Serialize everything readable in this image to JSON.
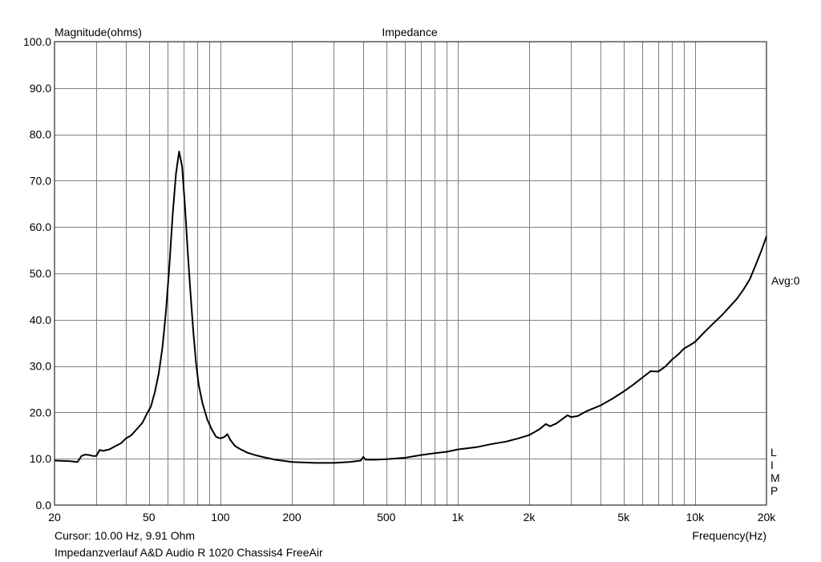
{
  "chart_data": {
    "type": "line",
    "title": "Impedance",
    "ylabel": "Magnitude(ohms)",
    "xlabel": "Frequency(Hz)",
    "x_scale": "log",
    "xlim": [
      20,
      20000
    ],
    "ylim": [
      0,
      100
    ],
    "grid": true,
    "y_ticks": [
      "0.0",
      "10.0",
      "20.0",
      "30.0",
      "40.0",
      "50.0",
      "60.0",
      "70.0",
      "80.0",
      "90.0",
      "100.0"
    ],
    "x_tick_labels": [
      {
        "value": 20,
        "label": "20"
      },
      {
        "value": 50,
        "label": "50"
      },
      {
        "value": 100,
        "label": "100"
      },
      {
        "value": 200,
        "label": "200"
      },
      {
        "value": 500,
        "label": "500"
      },
      {
        "value": 1000,
        "label": "1k"
      },
      {
        "value": 2000,
        "label": "2k"
      },
      {
        "value": 5000,
        "label": "5k"
      },
      {
        "value": 10000,
        "label": "10k"
      },
      {
        "value": 20000,
        "label": "20k"
      }
    ],
    "right_label": "Avg:0",
    "right_side_letters": [
      "L",
      "I",
      "M",
      "P"
    ],
    "series": [
      {
        "color": "#000000",
        "points": [
          [
            20,
            9.6
          ],
          [
            23,
            9.5
          ],
          [
            25,
            9.3
          ],
          [
            26,
            10.6
          ],
          [
            27,
            10.9
          ],
          [
            28,
            10.8
          ],
          [
            29,
            10.6
          ],
          [
            30,
            10.6
          ],
          [
            31,
            11.9
          ],
          [
            32,
            11.7
          ],
          [
            34,
            12.0
          ],
          [
            36,
            12.7
          ],
          [
            38,
            13.3
          ],
          [
            40,
            14.4
          ],
          [
            42,
            15.0
          ],
          [
            45,
            16.7
          ],
          [
            47,
            17.8
          ],
          [
            49,
            19.7
          ],
          [
            51,
            21.3
          ],
          [
            53,
            24.5
          ],
          [
            55,
            28.4
          ],
          [
            57,
            34.0
          ],
          [
            59,
            42.0
          ],
          [
            61,
            52.0
          ],
          [
            63,
            63.0
          ],
          [
            65,
            71.5
          ],
          [
            67,
            76.3
          ],
          [
            69,
            73.0
          ],
          [
            71,
            64.0
          ],
          [
            73,
            54.0
          ],
          [
            75,
            45.0
          ],
          [
            77,
            37.0
          ],
          [
            79,
            30.5
          ],
          [
            81,
            26.0
          ],
          [
            84,
            22.0
          ],
          [
            88,
            18.5
          ],
          [
            92,
            16.3
          ],
          [
            96,
            14.7
          ],
          [
            100,
            14.4
          ],
          [
            104,
            14.7
          ],
          [
            107,
            15.3
          ],
          [
            110,
            14.1
          ],
          [
            115,
            12.8
          ],
          [
            120,
            12.2
          ],
          [
            130,
            11.3
          ],
          [
            140,
            10.8
          ],
          [
            150,
            10.4
          ],
          [
            170,
            9.8
          ],
          [
            200,
            9.3
          ],
          [
            250,
            9.1
          ],
          [
            300,
            9.1
          ],
          [
            350,
            9.3
          ],
          [
            390,
            9.6
          ],
          [
            400,
            10.4
          ],
          [
            410,
            9.8
          ],
          [
            450,
            9.8
          ],
          [
            500,
            9.9
          ],
          [
            600,
            10.2
          ],
          [
            700,
            10.8
          ],
          [
            800,
            11.2
          ],
          [
            900,
            11.5
          ],
          [
            1000,
            12.0
          ],
          [
            1200,
            12.5
          ],
          [
            1400,
            13.2
          ],
          [
            1600,
            13.7
          ],
          [
            1800,
            14.4
          ],
          [
            2000,
            15.1
          ],
          [
            2200,
            16.3
          ],
          [
            2350,
            17.5
          ],
          [
            2450,
            17.0
          ],
          [
            2600,
            17.6
          ],
          [
            2800,
            18.8
          ],
          [
            2900,
            19.4
          ],
          [
            3000,
            19.0
          ],
          [
            3200,
            19.2
          ],
          [
            3500,
            20.3
          ],
          [
            4000,
            21.5
          ],
          [
            4500,
            23.0
          ],
          [
            5000,
            24.5
          ],
          [
            5500,
            26.0
          ],
          [
            6000,
            27.5
          ],
          [
            6500,
            28.9
          ],
          [
            7000,
            28.8
          ],
          [
            7500,
            29.9
          ],
          [
            8000,
            31.4
          ],
          [
            8500,
            32.5
          ],
          [
            9000,
            33.8
          ],
          [
            9500,
            34.5
          ],
          [
            10000,
            35.2
          ],
          [
            11000,
            37.4
          ],
          [
            12000,
            39.3
          ],
          [
            13000,
            41.0
          ],
          [
            14000,
            42.8
          ],
          [
            15000,
            44.5
          ],
          [
            16000,
            46.5
          ],
          [
            17000,
            48.7
          ],
          [
            18000,
            51.8
          ],
          [
            19000,
            54.8
          ],
          [
            20000,
            58.0
          ]
        ]
      }
    ]
  },
  "footer": {
    "cursor": "Cursor: 10.00 Hz, 9.91 Ohm",
    "caption": "Impedanzverlauf A&D Audio R 1020 Chassis4 FreeAir"
  }
}
